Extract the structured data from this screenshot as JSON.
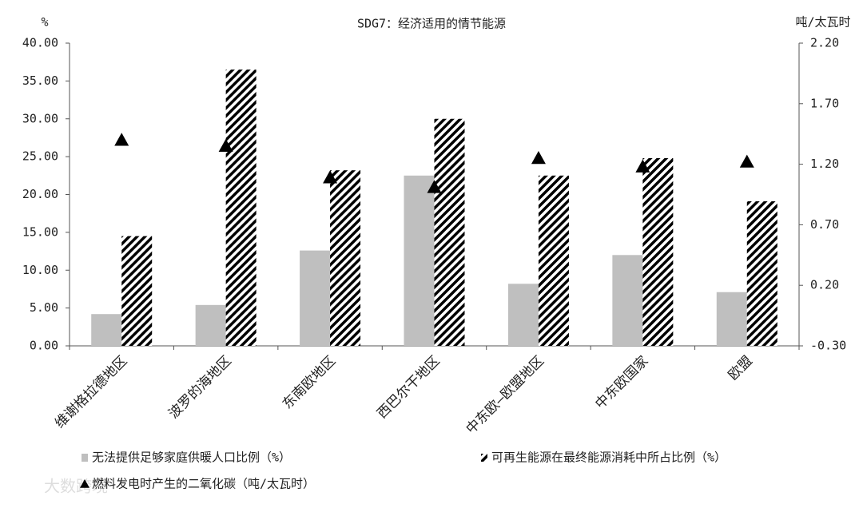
{
  "chart_data": {
    "type": "bar",
    "title": "SDG7：经济适用的情节能源",
    "y_label": "%",
    "y2_label": "吨/太瓦时",
    "categories": [
      "维谢格拉德地区",
      "波罗的海地区",
      "东南欧地区",
      "西巴尔干地区",
      "中东欧—欧盟地区",
      "中东欧国家",
      "欧盟"
    ],
    "series": [
      {
        "name": "无法提供足够家庭供暖人口比例（%）",
        "type": "bar",
        "color": "#bfbfbf",
        "values": [
          4.2,
          5.4,
          12.6,
          22.5,
          8.2,
          12.0,
          7.1
        ]
      },
      {
        "name": "可再生能源在最终能源消耗中所占比例（%）",
        "type": "bar",
        "pattern": "hatch",
        "color": "#000000",
        "values": [
          14.5,
          36.5,
          23.2,
          30.0,
          22.5,
          24.8,
          19.1
        ]
      },
      {
        "name": "燃料发电时产生的二氧化碳（吨/太瓦时）",
        "type": "scatter",
        "marker": "triangle",
        "axis": "y2",
        "color": "#000000",
        "values": [
          1.4,
          1.35,
          1.09,
          1.01,
          1.25,
          1.18,
          1.22
        ]
      }
    ],
    "ylim": [
      0,
      40
    ],
    "yticks": [
      {
        "value": 0,
        "label": "0.00"
      },
      {
        "value": 5,
        "label": "5.00"
      },
      {
        "value": 10,
        "label": "10.00"
      },
      {
        "value": 15,
        "label": "15.00"
      },
      {
        "value": 20,
        "label": "20.00"
      },
      {
        "value": 25,
        "label": "25.00"
      },
      {
        "value": 30,
        "label": "30.00"
      },
      {
        "value": 35,
        "label": "35.00"
      },
      {
        "value": 40,
        "label": "40.00"
      }
    ],
    "y2lim": [
      -0.3,
      2.2
    ],
    "y2ticks": [
      {
        "value": -0.3,
        "label": "-0.30"
      },
      {
        "value": 0.2,
        "label": "0.20"
      },
      {
        "value": 0.7,
        "label": "0.70"
      },
      {
        "value": 1.2,
        "label": "1.20"
      },
      {
        "value": 1.7,
        "label": "1.70"
      },
      {
        "value": 2.2,
        "label": "2.20"
      }
    ],
    "grid": false,
    "legend": "bottom",
    "watermark": "大数跨境"
  }
}
